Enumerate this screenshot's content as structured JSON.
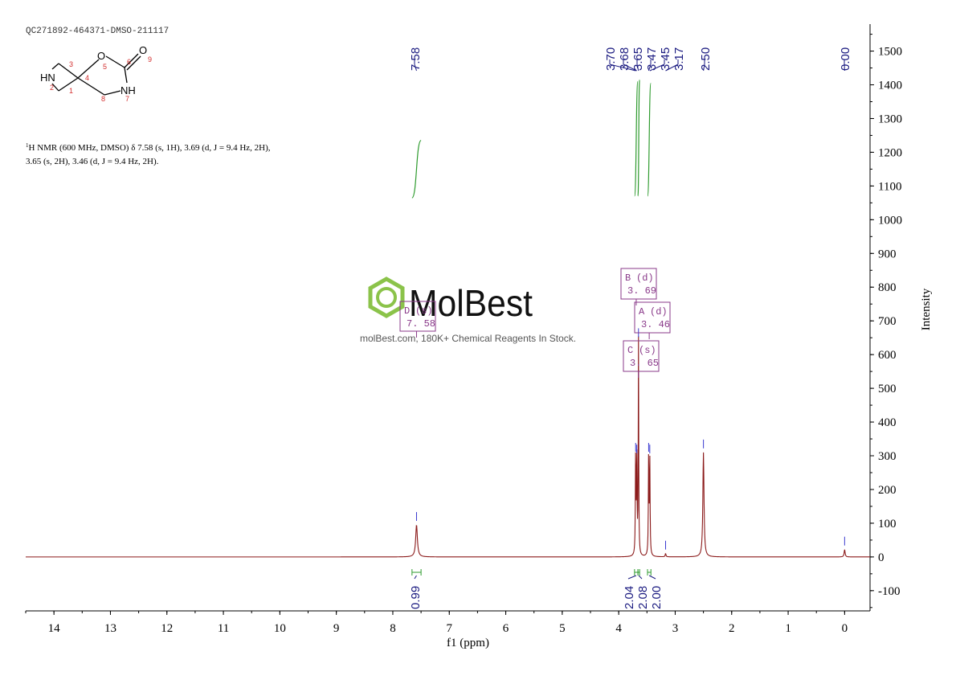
{
  "header": {
    "sample_id": "QC271892-464371-DMSO-211117",
    "nmr_summary_line1_prefix": "1",
    "nmr_summary_line1": "H NMR (600 MHz, DMSO) δ 7.58 (s, 1H), 3.69 (d, J = 9.4 Hz, 2H),",
    "nmr_summary_line2": "3.65 (s, 2H), 3.46 (d, J = 9.4 Hz, 2H)."
  },
  "structure": {
    "labels": {
      "HN": "HN",
      "O_ring": "O",
      "O_carbonyl": "O",
      "NH": "NH",
      "n1": "1",
      "n2": "2",
      "n3": "3",
      "n4": "4",
      "n5": "5",
      "n6": "6",
      "n7": "7",
      "n8": "8",
      "n9": "9"
    }
  },
  "watermark": {
    "brand": "MolBest",
    "tagline": "molBest.com, 180K+ Chemical Reagents In Stock."
  },
  "colors": {
    "spectrum": "#8b1a1a",
    "integral": "#2e9b2e",
    "peak_label": "#1a1a80",
    "multiplet_box": "#8a3a8a",
    "axis": "#000000",
    "watermark_green": "#8bc34a"
  },
  "chart_data": {
    "type": "line",
    "xlabel": "f1 (ppm)",
    "ylabel": "Intensity",
    "xlim": [
      14.5,
      -0.45
    ],
    "ylim": [
      -160,
      1580
    ],
    "x_reversed": true,
    "x_ticks": [
      "14",
      "13",
      "12",
      "11",
      "10",
      "9",
      "8",
      "7",
      "6",
      "5",
      "4",
      "3",
      "2",
      "1",
      "0"
    ],
    "y_ticks": [
      "-100",
      "0",
      "100",
      "200",
      "300",
      "400",
      "500",
      "600",
      "700",
      "800",
      "900",
      "1000",
      "1100",
      "1200",
      "1300",
      "1400",
      "1500"
    ],
    "peaks": [
      {
        "ppm": 7.58,
        "intensity": 95,
        "width": 0.018
      },
      {
        "ppm": 3.7,
        "intensity": 300,
        "width": 0.006
      },
      {
        "ppm": 3.68,
        "intensity": 295,
        "width": 0.006
      },
      {
        "ppm": 3.65,
        "intensity": 640,
        "width": 0.005
      },
      {
        "ppm": 3.47,
        "intensity": 300,
        "width": 0.006
      },
      {
        "ppm": 3.45,
        "intensity": 295,
        "width": 0.006
      },
      {
        "ppm": 3.17,
        "intensity": 10,
        "width": 0.008
      },
      {
        "ppm": 2.5,
        "intensity": 310,
        "width": 0.012
      },
      {
        "ppm": 0.0,
        "intensity": 22,
        "width": 0.01
      }
    ],
    "peak_labels": [
      "7.58",
      "3.70",
      "3.68",
      "3.65",
      "3.47",
      "3.45",
      "3.17",
      "2.50",
      "0.00"
    ],
    "integrals": [
      {
        "from": 7.66,
        "to": 7.5,
        "value": "0.99",
        "y_start": 1065,
        "y_end": 1235
      },
      {
        "from": 3.72,
        "to": 3.66,
        "value": "2.04",
        "y_start": 1070,
        "y_end": 1410
      },
      {
        "from": 3.66,
        "to": 3.63,
        "value": "2.08",
        "y_start": 1070,
        "y_end": 1415
      },
      {
        "from": 3.49,
        "to": 3.43,
        "value": "2.00",
        "y_start": 1070,
        "y_end": 1405
      }
    ],
    "multiplets": [
      {
        "letter": "D",
        "kind": "(s)",
        "shift": "7. 58",
        "ppm": 7.58
      },
      {
        "letter": "B",
        "kind": "(d)",
        "shift": "3. 69",
        "ppm": 3.69
      },
      {
        "letter": "A",
        "kind": "(d)",
        "shift": "3. 46",
        "ppm": 3.46
      },
      {
        "letter": "C",
        "kind": "(s)",
        "shift": "3. 65",
        "ppm": 3.65
      }
    ]
  }
}
